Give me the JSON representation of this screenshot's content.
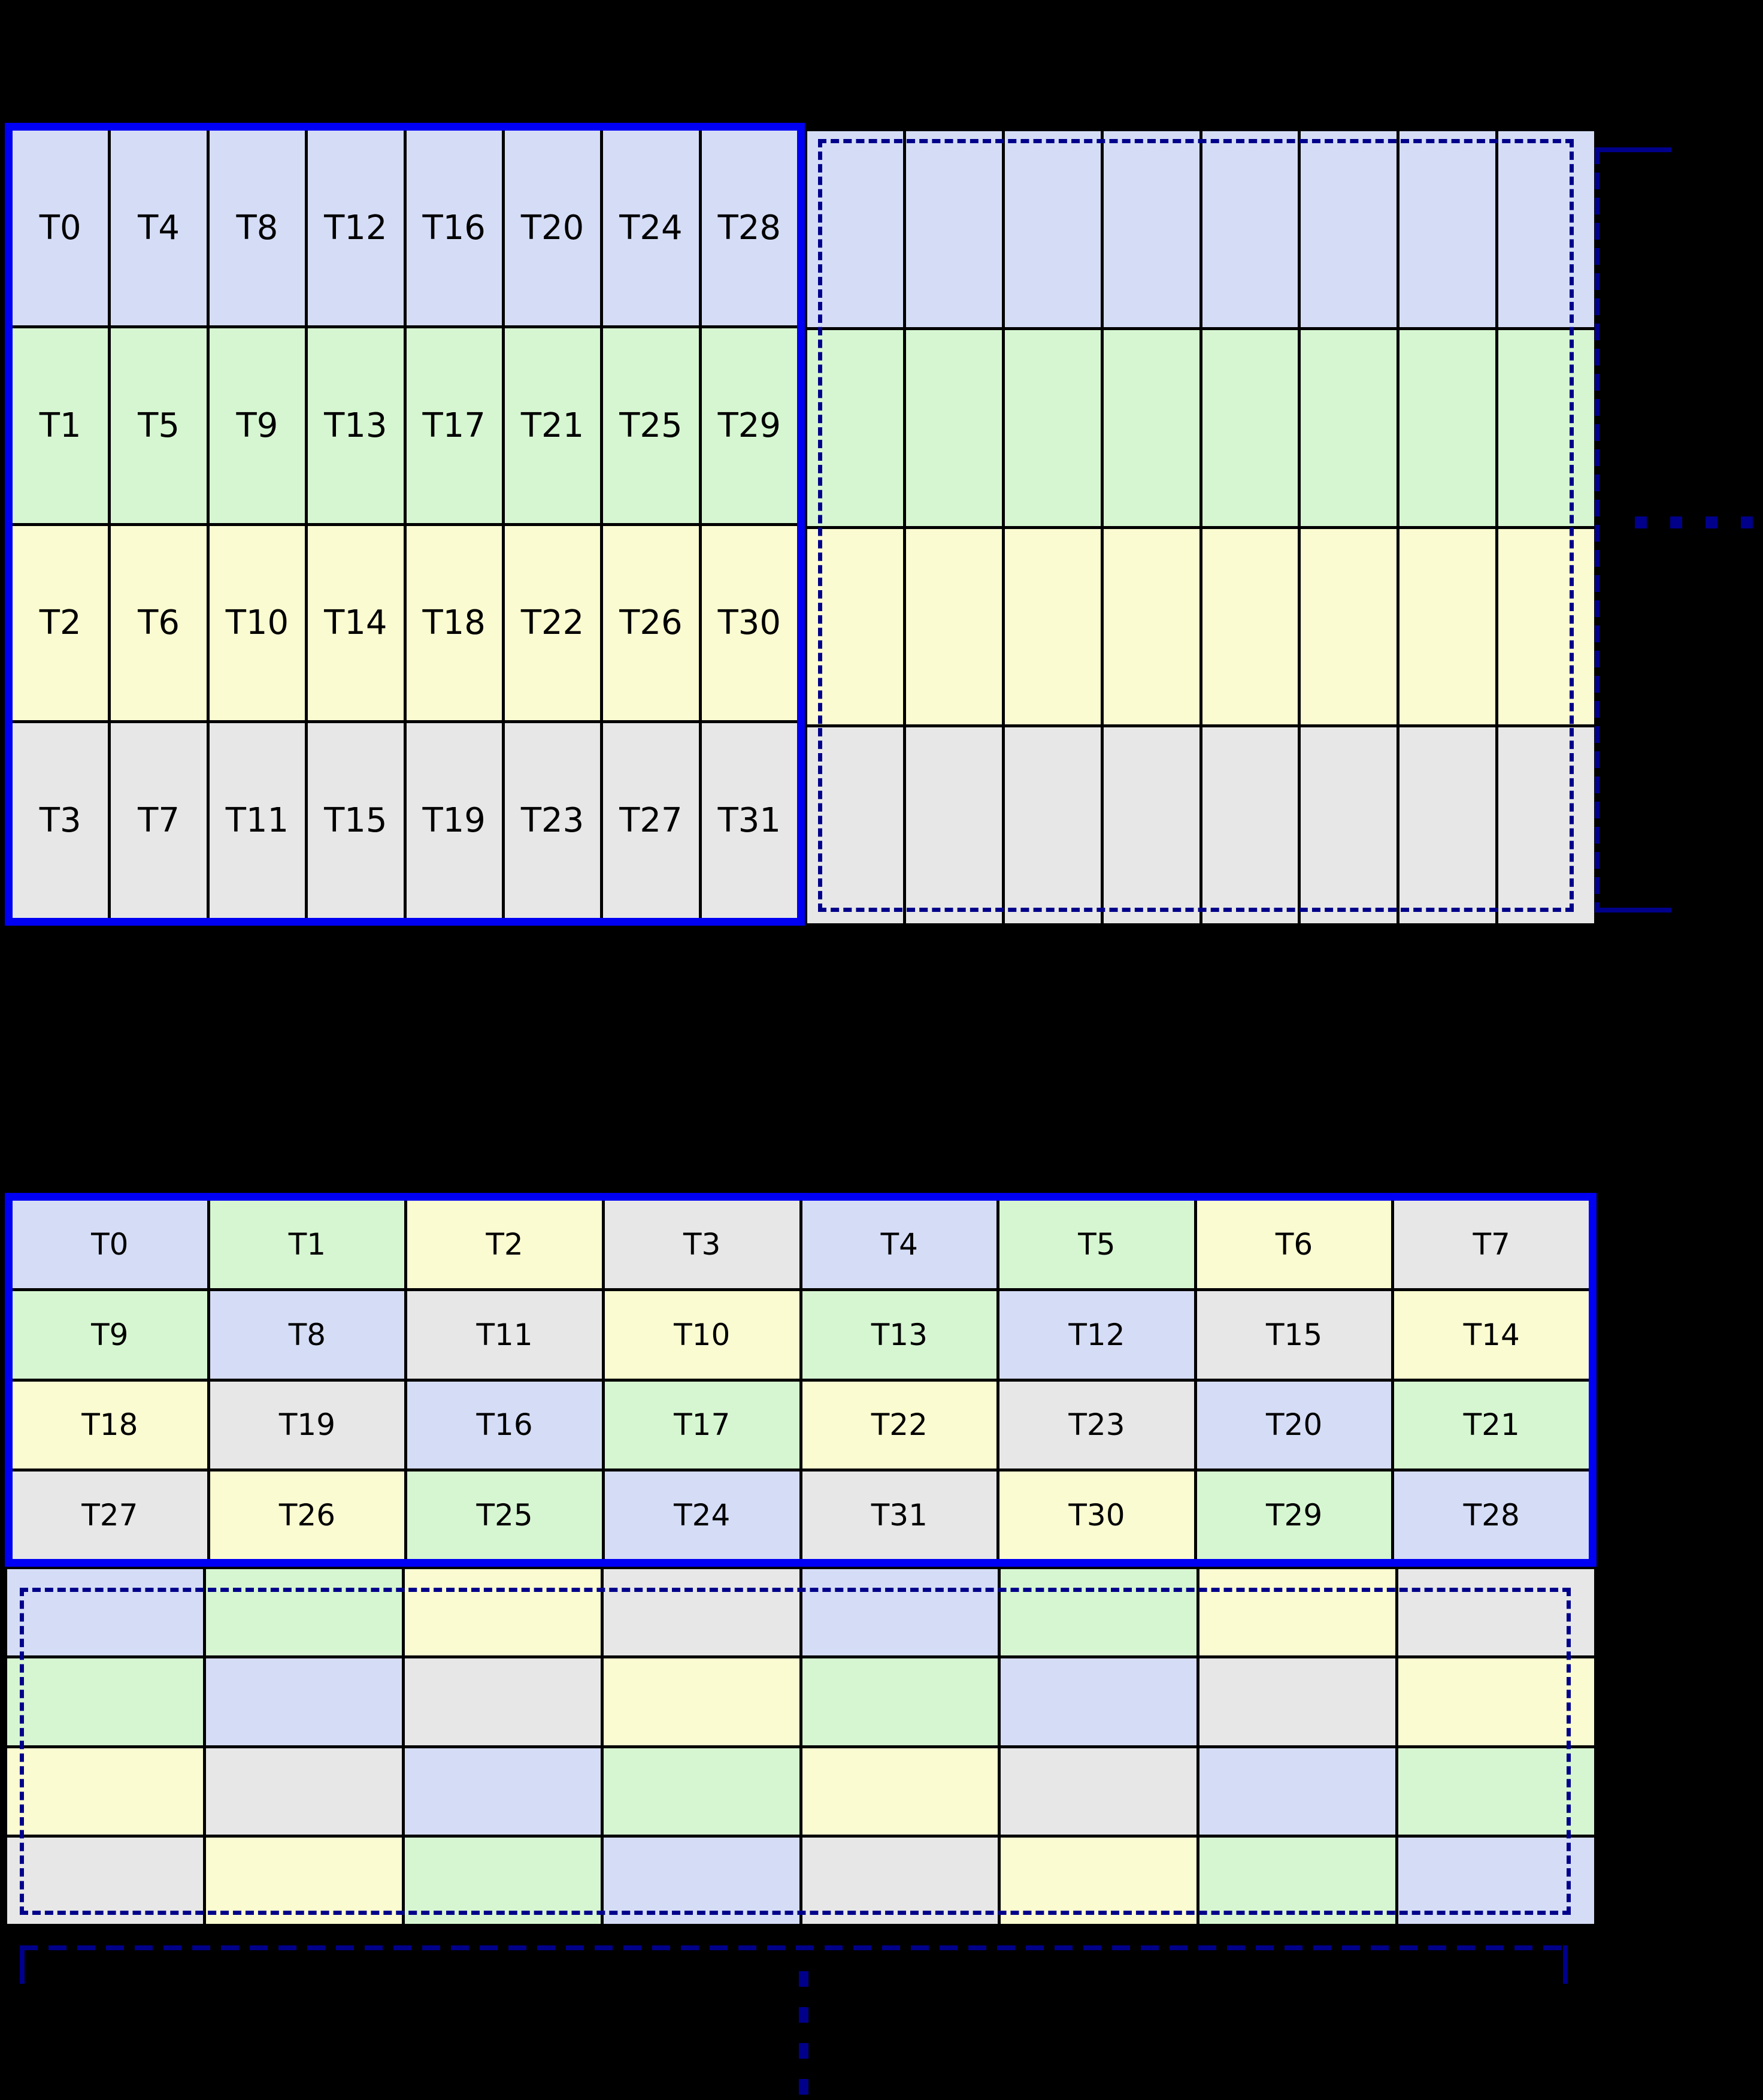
{
  "colors": {
    "background": "#000000",
    "thread_lane_colors": [
      "#d5ddf6",
      "#d6f6d1",
      "#fbfbd1",
      "#e7e7e7"
    ],
    "warp_outline": "#0000f5",
    "continuation_dashed": "#00008b",
    "grid_line": "#000000",
    "label_text": "#000000"
  },
  "top_grid": {
    "labeled_block": {
      "rows": [
        {
          "color_index": 0,
          "labels": [
            "T0",
            "T4",
            "T8",
            "T12",
            "T16",
            "T20",
            "T24",
            "T28"
          ]
        },
        {
          "color_index": 1,
          "labels": [
            "T1",
            "T5",
            "T9",
            "T13",
            "T17",
            "T21",
            "T25",
            "T29"
          ]
        },
        {
          "color_index": 2,
          "labels": [
            "T2",
            "T6",
            "T10",
            "T14",
            "T18",
            "T22",
            "T26",
            "T30"
          ]
        },
        {
          "color_index": 3,
          "labels": [
            "T3",
            "T7",
            "T11",
            "T15",
            "T19",
            "T23",
            "T27",
            "T31"
          ]
        }
      ]
    },
    "unlabeled_block": {
      "columns": 8,
      "row_color_indices": [
        0,
        1,
        2,
        3
      ]
    }
  },
  "bottom_grid": {
    "labeled_block": {
      "rows": [
        {
          "labels": [
            "T0",
            "T1",
            "T2",
            "T3",
            "T4",
            "T5",
            "T6",
            "T7"
          ],
          "color_indices": [
            0,
            1,
            2,
            3,
            0,
            1,
            2,
            3
          ]
        },
        {
          "labels": [
            "T9",
            "T8",
            "T11",
            "T10",
            "T13",
            "T12",
            "T15",
            "T14"
          ],
          "color_indices": [
            1,
            0,
            3,
            2,
            1,
            0,
            3,
            2
          ]
        },
        {
          "labels": [
            "T18",
            "T19",
            "T16",
            "T17",
            "T22",
            "T23",
            "T20",
            "T21"
          ],
          "color_indices": [
            2,
            3,
            0,
            1,
            2,
            3,
            0,
            1
          ]
        },
        {
          "labels": [
            "T27",
            "T26",
            "T25",
            "T24",
            "T31",
            "T30",
            "T29",
            "T28"
          ],
          "color_indices": [
            3,
            2,
            1,
            0,
            3,
            2,
            1,
            0
          ]
        }
      ]
    },
    "unlabeled_block": {
      "rows_color_indices": [
        [
          0,
          1,
          2,
          3,
          0,
          1,
          2,
          3
        ],
        [
          1,
          0,
          3,
          2,
          1,
          0,
          3,
          2
        ],
        [
          2,
          3,
          0,
          1,
          2,
          3,
          0,
          1
        ],
        [
          3,
          2,
          1,
          0,
          3,
          2,
          1,
          0
        ]
      ]
    }
  }
}
